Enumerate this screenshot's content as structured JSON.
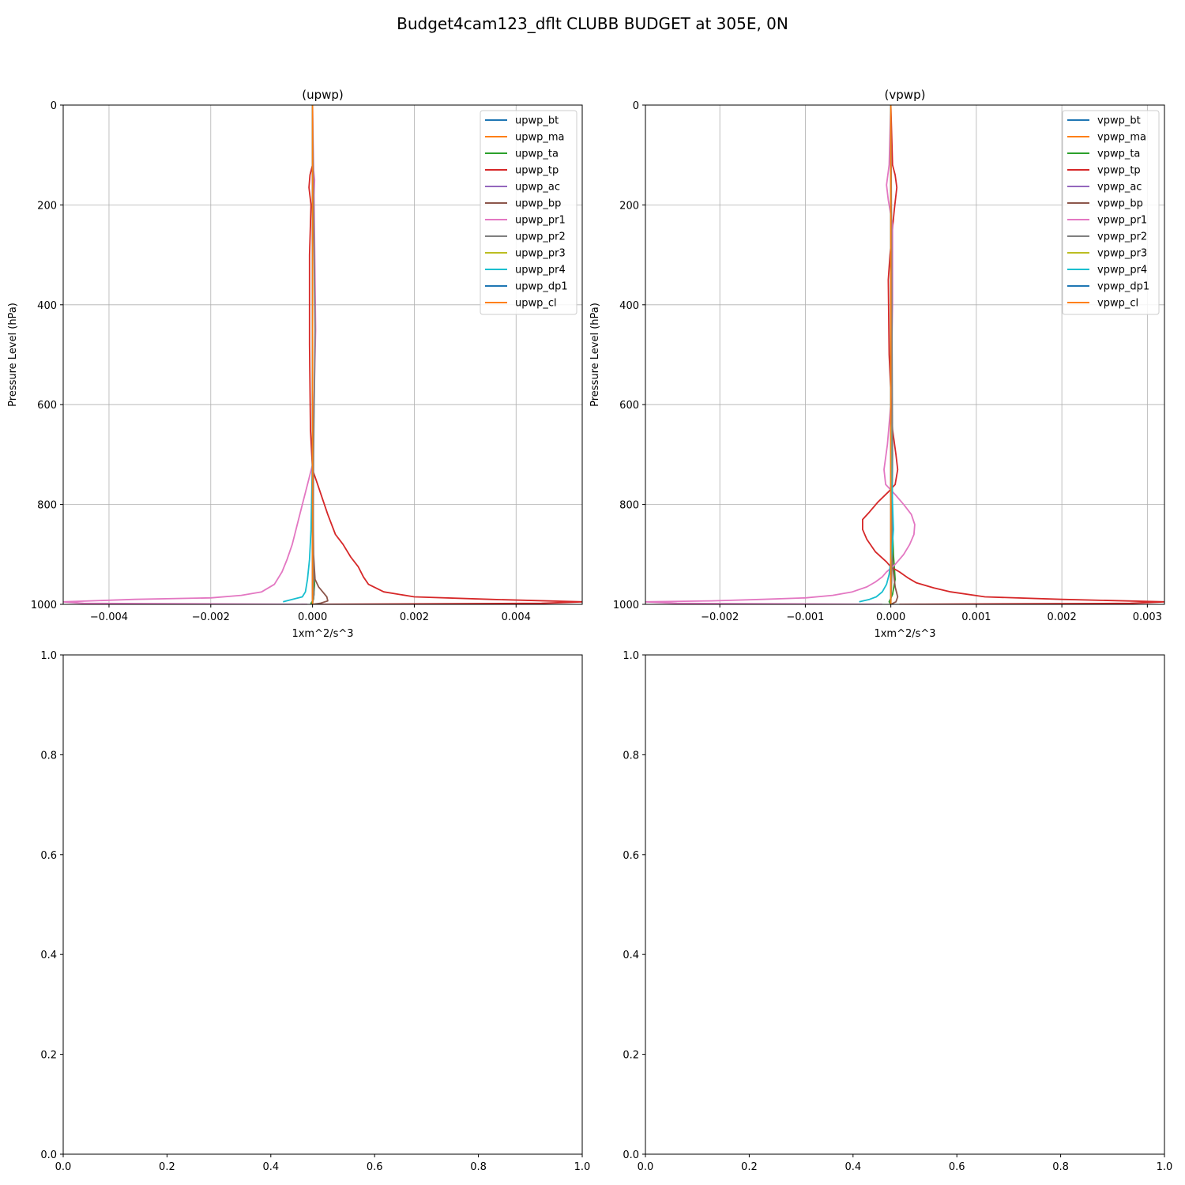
{
  "figure": {
    "title": "Budget4cam123_dflt CLUBB BUDGET at 305E, 0N"
  },
  "chart_data": [
    {
      "type": "line",
      "title": "(upwp)",
      "xlabel": "1xm^2/s^3",
      "ylabel": "Pressure Level (hPa)",
      "xlim": [
        -0.0049,
        0.0053
      ],
      "ylim": [
        1000,
        0
      ],
      "xticks": [
        -0.004,
        -0.002,
        0.0,
        0.002,
        0.004
      ],
      "xtick_labels": [
        "−0.004",
        "−0.002",
        "0.000",
        "0.002",
        "0.004"
      ],
      "yticks": [
        0,
        200,
        400,
        600,
        800,
        1000
      ],
      "ytick_labels": [
        "0",
        "200",
        "400",
        "600",
        "800",
        "1000"
      ],
      "grid": true,
      "legend": "top-right",
      "series": [
        {
          "name": "upwp_bt",
          "color": "#1f77b4",
          "x": [
            0,
            0,
            0,
            0,
            0
          ],
          "y": [
            0,
            250,
            500,
            750,
            1000
          ]
        },
        {
          "name": "upwp_ma",
          "color": "#ff7f0e",
          "x": [
            0,
            0,
            0,
            0,
            0
          ],
          "y": [
            0,
            250,
            500,
            750,
            1000
          ]
        },
        {
          "name": "upwp_ta",
          "color": "#2ca02c",
          "x": [
            0,
            0,
            0,
            1e-05,
            4e-05,
            2e-05,
            -3e-05,
            0
          ],
          "y": [
            0,
            500,
            750,
            900,
            960,
            990,
            998,
            1000
          ]
        },
        {
          "name": "upwp_tp",
          "color": "#d62728",
          "x": [
            0,
            0,
            -5e-05,
            -7e-05,
            -3e-05,
            -6e-05,
            -6e-05,
            -4e-05,
            0,
            0.0001,
            0.0002,
            0.0003,
            0.00045,
            0.0006,
            0.00075,
            0.0009,
            0.001,
            0.0011,
            0.0014,
            0.002,
            0.0035,
            0.0053,
            0.0045,
            0.0001
          ],
          "y": [
            0,
            120,
            140,
            165,
            200,
            300,
            480,
            650,
            730,
            760,
            790,
            820,
            860,
            880,
            905,
            925,
            945,
            960,
            975,
            985,
            990,
            995,
            998,
            1000
          ]
        },
        {
          "name": "upwp_ac",
          "color": "#9467bd",
          "x": [
            0,
            0,
            0,
            0
          ],
          "y": [
            0,
            500,
            900,
            1000
          ]
        },
        {
          "name": "upwp_bp",
          "color": "#8c564b",
          "x": [
            0,
            0,
            2e-05,
            5e-05,
            0.00012,
            0.0002,
            0.00028,
            0.0003,
            0.00015,
            0
          ],
          "y": [
            0,
            700,
            900,
            950,
            965,
            975,
            985,
            993,
            998,
            1000
          ]
        },
        {
          "name": "upwp_pr1",
          "color": "#e377c2",
          "x": [
            0,
            2e-05,
            4e-05,
            3e-05,
            6e-05,
            3e-05,
            0,
            -0.0001,
            -0.0002,
            -0.0003,
            -0.0004,
            -0.0005,
            -0.0006,
            -0.00075,
            -0.001,
            -0.0014,
            -0.002,
            -0.0035,
            -0.0049,
            -0.0045,
            -0.0001
          ],
          "y": [
            0,
            130,
            150,
            180,
            450,
            600,
            720,
            760,
            800,
            840,
            880,
            910,
            935,
            960,
            975,
            982,
            987,
            990,
            995,
            998,
            1000
          ]
        },
        {
          "name": "upwp_pr2",
          "color": "#7f7f7f",
          "x": [
            0,
            2e-05,
            5e-05,
            2e-05,
            1e-05,
            3e-05,
            0
          ],
          "y": [
            0,
            200,
            450,
            700,
            900,
            980,
            1000
          ]
        },
        {
          "name": "upwp_pr3",
          "color": "#bcbd22",
          "x": [
            0,
            0,
            0,
            0
          ],
          "y": [
            0,
            500,
            900,
            1000
          ]
        },
        {
          "name": "upwp_pr4",
          "color": "#17becf",
          "x": [
            0,
            0,
            -3e-05,
            -6e-05,
            -0.0001,
            -0.00014,
            -0.0002,
            -0.0004,
            -0.00058
          ],
          "y": [
            0,
            700,
            850,
            910,
            950,
            975,
            985,
            990,
            995
          ]
        },
        {
          "name": "upwp_dp1",
          "color": "#1f77b4",
          "x": [
            0,
            0,
            0,
            0
          ],
          "y": [
            0,
            500,
            900,
            1000
          ]
        },
        {
          "name": "upwp_cl",
          "color": "#ff7f0e",
          "x": [
            0,
            0,
            0,
            0
          ],
          "y": [
            0,
            500,
            900,
            1000
          ]
        }
      ]
    },
    {
      "type": "line",
      "title": "(vpwp)",
      "xlabel": "1xm^2/s^3",
      "ylabel": "Pressure Level (hPa)",
      "xlim": [
        -0.00287,
        0.0032
      ],
      "ylim": [
        1000,
        0
      ],
      "xticks": [
        -0.002,
        -0.001,
        0.0,
        0.001,
        0.002,
        0.003
      ],
      "xtick_labels": [
        "−0.002",
        "−0.001",
        "0.000",
        "0.001",
        "0.002",
        "0.003"
      ],
      "yticks": [
        0,
        200,
        400,
        600,
        800,
        1000
      ],
      "ytick_labels": [
        "0",
        "200",
        "400",
        "600",
        "800",
        "1000"
      ],
      "grid": true,
      "legend": "top-right",
      "series": [
        {
          "name": "vpwp_bt",
          "color": "#1f77b4",
          "x": [
            0,
            0,
            0,
            0,
            0
          ],
          "y": [
            0,
            250,
            500,
            750,
            1000
          ]
        },
        {
          "name": "vpwp_ma",
          "color": "#ff7f0e",
          "x": [
            0,
            0,
            0,
            0,
            0
          ],
          "y": [
            0,
            250,
            500,
            750,
            1000
          ]
        },
        {
          "name": "vpwp_ta",
          "color": "#2ca02c",
          "x": [
            0,
            0,
            1e-05,
            3e-05,
            5e-05,
            2e-05,
            -2e-05,
            0
          ],
          "y": [
            0,
            600,
            800,
            900,
            950,
            980,
            995,
            1000
          ]
        },
        {
          "name": "vpwp_tp",
          "color": "#d62728",
          "x": [
            0,
            2e-05,
            5e-05,
            7e-05,
            4e-05,
            -1e-05,
            -3e-05,
            -2e-05,
            2e-05,
            6e-05,
            8e-05,
            5e-05,
            -3e-05,
            -0.00015,
            -0.00025,
            -0.00033,
            -0.00033,
            -0.00028,
            -0.00018,
            -5e-05,
            0,
            0.0001,
            0.0002,
            0.0003,
            0.0005,
            0.0007,
            0.0011,
            0.002,
            0.0032,
            0.0028,
            0.0001
          ],
          "y": [
            0,
            120,
            140,
            165,
            210,
            300,
            350,
            500,
            650,
            700,
            730,
            760,
            775,
            795,
            815,
            830,
            850,
            870,
            895,
            915,
            925,
            935,
            947,
            957,
            967,
            975,
            985,
            990,
            995,
            998,
            1000
          ]
        },
        {
          "name": "vpwp_ac",
          "color": "#9467bd",
          "x": [
            0,
            0,
            0,
            0
          ],
          "y": [
            0,
            500,
            900,
            1000
          ]
        },
        {
          "name": "vpwp_bp",
          "color": "#8c564b",
          "x": [
            0,
            0,
            2e-05,
            5e-05,
            8e-05,
            6e-05,
            0
          ],
          "y": [
            0,
            800,
            920,
            965,
            985,
            995,
            1000
          ]
        },
        {
          "name": "vpwp_pr1",
          "color": "#e377c2",
          "x": [
            0,
            -2e-05,
            -5e-05,
            -3e-05,
            2e-05,
            2e-05,
            0,
            -4e-05,
            -8e-05,
            -6e-05,
            5e-05,
            0.00015,
            0.00024,
            0.00028,
            0.00027,
            0.00022,
            0.00015,
            5e-05,
            -5e-05,
            -0.0001,
            -0.00018,
            -0.00028,
            -0.00045,
            -0.00068,
            -0.001,
            -0.0015,
            -0.0021,
            -0.00287,
            -0.0025,
            -0.0001
          ],
          "y": [
            0,
            120,
            160,
            190,
            240,
            400,
            600,
            680,
            730,
            760,
            780,
            800,
            820,
            840,
            860,
            880,
            900,
            920,
            935,
            945,
            955,
            965,
            975,
            982,
            987,
            990,
            993,
            995,
            998,
            1000
          ]
        },
        {
          "name": "vpwp_pr2",
          "color": "#7f7f7f",
          "x": [
            0,
            1e-05,
            2e-05,
            1e-05,
            0
          ],
          "y": [
            0,
            300,
            700,
            950,
            1000
          ]
        },
        {
          "name": "vpwp_pr3",
          "color": "#bcbd22",
          "x": [
            0,
            0,
            0,
            0
          ],
          "y": [
            0,
            500,
            900,
            1000
          ]
        },
        {
          "name": "vpwp_pr4",
          "color": "#17becf",
          "x": [
            0,
            0,
            1e-05,
            2e-05,
            3e-05,
            1e-05,
            -2e-05,
            -5e-05,
            -0.0001,
            -0.00017,
            -0.00025,
            -0.00037
          ],
          "y": [
            0,
            600,
            750,
            800,
            850,
            900,
            940,
            960,
            975,
            985,
            990,
            995
          ]
        },
        {
          "name": "vpwp_dp1",
          "color": "#1f77b4",
          "x": [
            0,
            0,
            0,
            0
          ],
          "y": [
            0,
            500,
            900,
            1000
          ]
        },
        {
          "name": "vpwp_cl",
          "color": "#ff7f0e",
          "x": [
            0,
            0,
            0,
            0
          ],
          "y": [
            0,
            500,
            900,
            1000
          ]
        }
      ]
    },
    {
      "type": "line",
      "title": "",
      "xlim": [
        0,
        1
      ],
      "ylim": [
        0,
        1
      ],
      "xticks": [
        0,
        0.2,
        0.4,
        0.6,
        0.8,
        1.0
      ],
      "xtick_labels": [
        "0.0",
        "0.2",
        "0.4",
        "0.6",
        "0.8",
        "1.0"
      ],
      "yticks": [
        0,
        0.2,
        0.4,
        0.6,
        0.8,
        1.0
      ],
      "ytick_labels": [
        "0.0",
        "0.2",
        "0.4",
        "0.6",
        "0.8",
        "1.0"
      ],
      "grid": false,
      "series": []
    },
    {
      "type": "line",
      "title": "",
      "xlim": [
        0,
        1
      ],
      "ylim": [
        0,
        1
      ],
      "xticks": [
        0,
        0.2,
        0.4,
        0.6,
        0.8,
        1.0
      ],
      "xtick_labels": [
        "0.0",
        "0.2",
        "0.4",
        "0.6",
        "0.8",
        "1.0"
      ],
      "yticks": [
        0,
        0.2,
        0.4,
        0.6,
        0.8,
        1.0
      ],
      "ytick_labels": [
        "0.0",
        "0.2",
        "0.4",
        "0.6",
        "0.8",
        "1.0"
      ],
      "grid": false,
      "series": []
    }
  ]
}
